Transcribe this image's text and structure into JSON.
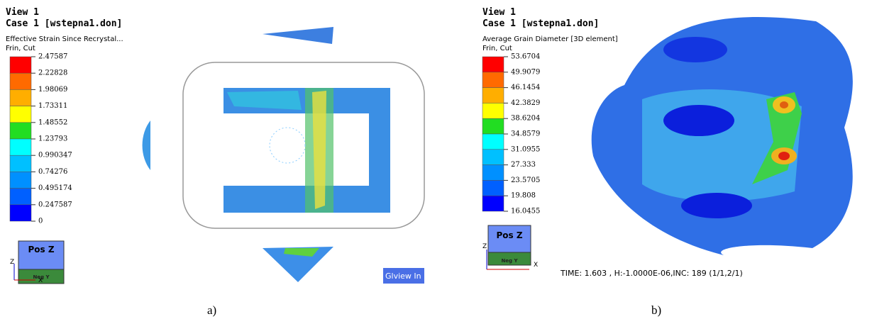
{
  "panels": [
    {
      "view": "View 1",
      "case": "Case 1  [wstepna1.don]",
      "variable": "Effective Strain Since Recrystal...",
      "section": "Frin, Cut",
      "legend": [
        "2.47587",
        "2.22828",
        "1.98069",
        "1.73311",
        "1.48552",
        "1.23793",
        "0.990347",
        "0.74276",
        "0.495174",
        "0.247587",
        "0"
      ],
      "cube_top": "Pos Z",
      "cube_front": "Neg Y",
      "axis_z": "Z",
      "axis_x": "X",
      "button": "Glview In",
      "caption": "a)"
    },
    {
      "view": "View 1",
      "case": "Case 1  [wstepna1.don]",
      "variable": "Average Grain Diameter [3D element]",
      "section": "Frin, Cut",
      "legend": [
        "53.6704",
        "49.9079",
        "46.1454",
        "42.3829",
        "38.6204",
        "34.8579",
        "31.0955",
        "27.333",
        "23.5705",
        "19.808",
        "16.0455"
      ],
      "cube_top": "Pos Z",
      "cube_front": "Neg Y",
      "axis_z": "Z",
      "axis_x": "X",
      "status": "TIME:  1.603     , H:-1.0000E-06,INC:     189 (1/1,2/1)",
      "caption": "b)"
    }
  ]
}
